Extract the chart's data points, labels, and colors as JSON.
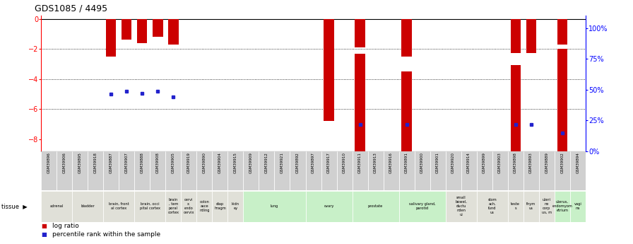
{
  "title": "GDS1085 / 4495",
  "samples": [
    "GSM39896",
    "GSM39906",
    "GSM39895",
    "GSM39918",
    "GSM39887",
    "GSM39907",
    "GSM39888",
    "GSM39908",
    "GSM39905",
    "GSM39919",
    "GSM39890",
    "GSM39904",
    "GSM39915",
    "GSM39909",
    "GSM39912",
    "GSM39921",
    "GSM39892",
    "GSM39897",
    "GSM39917",
    "GSM39910",
    "GSM39911",
    "GSM39913",
    "GSM39916",
    "GSM39891",
    "GSM39900",
    "GSM39901",
    "GSM39920",
    "GSM39914",
    "GSM39899",
    "GSM39903",
    "GSM39898",
    "GSM39893",
    "GSM39889",
    "GSM39902",
    "GSM39894"
  ],
  "log_ratios_left": [
    0,
    0,
    0,
    0,
    -2.5,
    -1.4,
    -1.6,
    -1.2,
    -1.7,
    0,
    0,
    0,
    0,
    0,
    0,
    0,
    0,
    0,
    -6.8,
    0,
    -1.9,
    0,
    0,
    -2.5,
    0,
    0,
    0,
    0,
    0,
    0,
    -2.25,
    -2.25,
    0,
    -1.7,
    0
  ],
  "pct_dots_left": [
    null,
    null,
    null,
    null,
    -5.0,
    -4.8,
    -4.95,
    -4.8,
    -5.2,
    null,
    null,
    null,
    null,
    null,
    null,
    null,
    null,
    null,
    null,
    null,
    -6.5,
    null,
    null,
    null,
    null,
    null,
    null,
    null,
    null,
    null,
    -7.2,
    -7.0,
    null,
    -6.9,
    null
  ],
  "log_ratios_right": [
    null,
    null,
    null,
    null,
    null,
    null,
    null,
    null,
    null,
    null,
    null,
    null,
    null,
    null,
    null,
    null,
    null,
    null,
    null,
    null,
    79,
    null,
    null,
    65,
    null,
    null,
    null,
    null,
    null,
    null,
    70,
    null,
    null,
    83,
    null
  ],
  "pct_dots_right": [
    null,
    null,
    null,
    null,
    null,
    null,
    null,
    null,
    null,
    null,
    null,
    null,
    null,
    null,
    null,
    null,
    null,
    null,
    null,
    null,
    22,
    null,
    null,
    22,
    null,
    null,
    null,
    null,
    null,
    null,
    22,
    null,
    null,
    15,
    null
  ],
  "tissue_ranges": [
    {
      "label": "adrenal",
      "start": 0,
      "end": 2,
      "green": false
    },
    {
      "label": "bladder",
      "start": 2,
      "end": 4,
      "green": false
    },
    {
      "label": "brain, front\nal cortex",
      "start": 4,
      "end": 6,
      "green": false
    },
    {
      "label": "brain, occi\npital cortex",
      "start": 6,
      "end": 8,
      "green": false
    },
    {
      "label": "brain\n, tem\nporal\ncortex",
      "start": 8,
      "end": 9,
      "green": false
    },
    {
      "label": "cervi\nx,\nendo\ncervix",
      "start": 9,
      "end": 10,
      "green": false
    },
    {
      "label": "colon\nasce\nnding",
      "start": 10,
      "end": 11,
      "green": false
    },
    {
      "label": "diap\nhragm",
      "start": 11,
      "end": 12,
      "green": false
    },
    {
      "label": "kidn\ney",
      "start": 12,
      "end": 13,
      "green": false
    },
    {
      "label": "lung",
      "start": 13,
      "end": 17,
      "green": true
    },
    {
      "label": "ovary",
      "start": 17,
      "end": 20,
      "green": true
    },
    {
      "label": "prostate",
      "start": 20,
      "end": 23,
      "green": true
    },
    {
      "label": "salivary gland,\nparotid",
      "start": 23,
      "end": 26,
      "green": true
    },
    {
      "label": "small\nbowel,\nductu\nnden\nui",
      "start": 26,
      "end": 28,
      "green": false
    },
    {
      "label": "stom\nach,\nfund\nus",
      "start": 28,
      "end": 30,
      "green": false
    },
    {
      "label": "teste\ns",
      "start": 30,
      "end": 31,
      "green": false
    },
    {
      "label": "thym\nus",
      "start": 31,
      "end": 32,
      "green": false
    },
    {
      "label": "uteri\nne\ncorp\nus, m",
      "start": 32,
      "end": 33,
      "green": false
    },
    {
      "label": "uterus,\nendomyom\netrium",
      "start": 33,
      "end": 34,
      "green": true
    },
    {
      "label": "vagi\nna",
      "start": 34,
      "end": 35,
      "green": true
    }
  ],
  "bar_color": "#cc0000",
  "dot_color": "#2222cc",
  "left_ylim": [
    -8.8,
    0.2
  ],
  "right_ylim": [
    0,
    110
  ],
  "left_yticks": [
    0,
    -2,
    -4,
    -6,
    -8
  ],
  "right_yticks": [
    0,
    25,
    50,
    75,
    100
  ],
  "right_yticklabels": [
    "0%",
    "25%",
    "50%",
    "75%",
    "100%"
  ],
  "green_color": "#c8f0c8",
  "grey_color": "#e0e0d8",
  "sample_bg": "#d0d0d0"
}
